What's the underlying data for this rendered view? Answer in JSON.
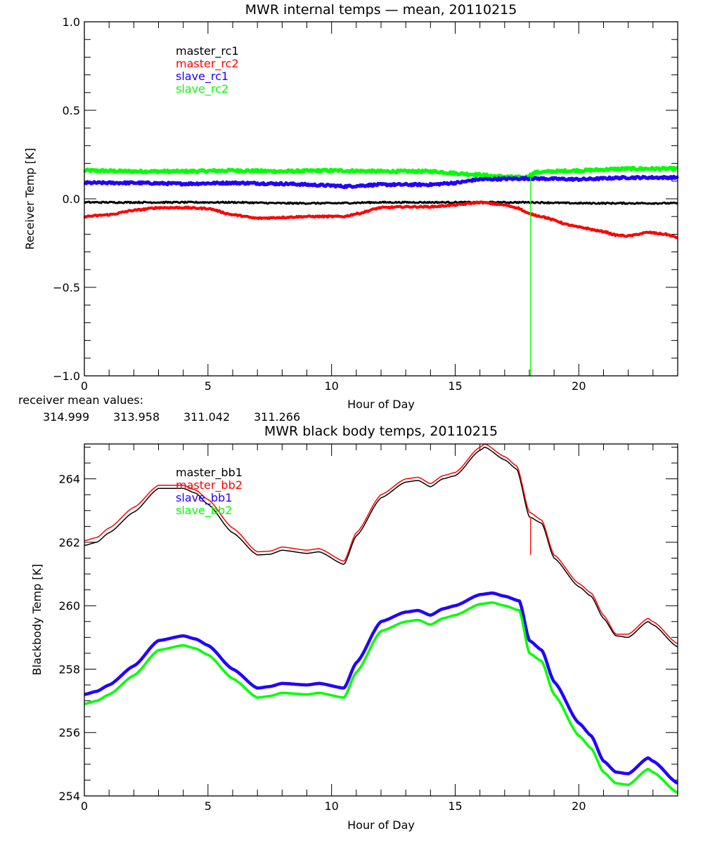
{
  "chart_data": [
    {
      "type": "line",
      "title": "MWR internal temps — mean, 20110215",
      "xlabel": "Hour of Day",
      "ylabel": "Receiver Temp [K]",
      "xlim": [
        0,
        24
      ],
      "ylim": [
        -1.0,
        1.0
      ],
      "xticks": [
        "0",
        "5",
        "10",
        "15",
        "20"
      ],
      "yticks": [
        "-1.0",
        "-0.5",
        "0.0",
        "0.5",
        "1.0"
      ],
      "grid": false,
      "legend_position": "top-left",
      "series": [
        {
          "name": "master_rc1",
          "color": "#000000",
          "x": [
            0,
            2,
            4,
            6,
            8,
            10,
            12,
            14,
            16,
            18,
            20,
            22,
            24
          ],
          "y": [
            -0.02,
            -0.02,
            -0.02,
            -0.02,
            -0.025,
            -0.025,
            -0.02,
            -0.02,
            -0.02,
            -0.02,
            -0.025,
            -0.025,
            -0.025
          ]
        },
        {
          "name": "master_rc2",
          "color": "#ff0000",
          "x": [
            0,
            1,
            2,
            3,
            4,
            5,
            6,
            7,
            8,
            9,
            10,
            10.5,
            11,
            12,
            13,
            14,
            15,
            16,
            17,
            17.5,
            18,
            18.5,
            19,
            19.5,
            20,
            21,
            21.5,
            22,
            22.8,
            23.5,
            24
          ],
          "y": [
            -0.1,
            -0.09,
            -0.065,
            -0.05,
            -0.05,
            -0.055,
            -0.09,
            -0.11,
            -0.105,
            -0.1,
            -0.1,
            -0.1,
            -0.085,
            -0.05,
            -0.045,
            -0.045,
            -0.035,
            -0.02,
            -0.035,
            -0.05,
            -0.085,
            -0.1,
            -0.12,
            -0.145,
            -0.16,
            -0.185,
            -0.205,
            -0.21,
            -0.19,
            -0.2,
            -0.22
          ]
        },
        {
          "name": "slave_rc1",
          "color": "#2200ff",
          "x": [
            0,
            2,
            4,
            6,
            8,
            10,
            10.5,
            12,
            14,
            15,
            16,
            18,
            20,
            22,
            24
          ],
          "y": [
            0.09,
            0.09,
            0.085,
            0.09,
            0.085,
            0.075,
            0.07,
            0.08,
            0.08,
            0.09,
            0.11,
            0.115,
            0.11,
            0.12,
            0.12
          ]
        },
        {
          "name": "slave_rc2",
          "color": "#00ff00",
          "x": [
            0,
            2,
            4,
            6,
            8,
            10,
            12,
            14,
            15.5,
            17,
            17.8,
            18.3,
            19,
            20,
            22,
            24
          ],
          "y": [
            0.16,
            0.155,
            0.155,
            0.16,
            0.155,
            0.16,
            0.155,
            0.155,
            0.14,
            0.125,
            0.12,
            0.15,
            0.155,
            0.16,
            0.17,
            0.17
          ]
        }
      ],
      "annotations": {
        "spike": {
          "series": "slave_rc2",
          "x": 18.05,
          "y_from": 0.14,
          "y_to": -1.0
        }
      }
    },
    {
      "type": "line",
      "title": "MWR black body temps, 20110215",
      "xlabel": "Hour of Day",
      "ylabel": "Blackbody Temp [K]",
      "xlim": [
        0,
        24
      ],
      "ylim": [
        254,
        265.1
      ],
      "xticks": [
        "0",
        "5",
        "10",
        "15",
        "20"
      ],
      "yticks": [
        "254",
        "256",
        "258",
        "260",
        "262",
        "264"
      ],
      "grid": false,
      "legend_position": "top-left",
      "series": [
        {
          "name": "master_bb1",
          "color": "#000000",
          "x": [
            0,
            0.5,
            1,
            2,
            3,
            4,
            4.5,
            5,
            6,
            7,
            7.5,
            8,
            9,
            9.5,
            10.5,
            11,
            12,
            13,
            13.5,
            14,
            14.5,
            15,
            16,
            16.2,
            17,
            17.5,
            18,
            18.5,
            19,
            20,
            20.5,
            21,
            21.5,
            22,
            22.8,
            23,
            24
          ],
          "y": [
            261.9,
            262.0,
            262.3,
            262.95,
            263.7,
            263.7,
            263.55,
            263.2,
            262.3,
            261.6,
            261.62,
            261.75,
            261.65,
            261.7,
            261.3,
            262.2,
            263.4,
            263.9,
            263.95,
            263.75,
            264.0,
            264.1,
            264.9,
            265.0,
            264.6,
            264.3,
            262.8,
            262.6,
            261.5,
            260.6,
            260.3,
            259.6,
            259.05,
            259.0,
            259.5,
            259.4,
            258.7
          ]
        },
        {
          "name": "master_bb2",
          "color": "#ff0000",
          "x": [
            0,
            0.5,
            1,
            2,
            3,
            4,
            4.5,
            5,
            6,
            7,
            7.5,
            8,
            9,
            9.5,
            10.5,
            11,
            12,
            13,
            13.5,
            14,
            14.5,
            15,
            16,
            16.2,
            17,
            17.5,
            18,
            18.5,
            19,
            20,
            20.5,
            21,
            21.5,
            22,
            22.8,
            23,
            24
          ],
          "y": [
            262.05,
            262.15,
            262.45,
            263.1,
            263.8,
            263.8,
            263.65,
            263.35,
            262.45,
            261.7,
            261.72,
            261.85,
            261.75,
            261.8,
            261.4,
            262.3,
            263.5,
            264.0,
            264.05,
            263.85,
            264.1,
            264.2,
            265.0,
            265.1,
            264.7,
            264.4,
            262.95,
            262.7,
            261.6,
            260.7,
            260.4,
            259.7,
            259.1,
            259.1,
            259.6,
            259.5,
            258.8
          ]
        },
        {
          "name": "slave_bb1",
          "color": "#2200ff",
          "x": [
            0,
            0.5,
            1,
            2,
            3,
            4,
            4.5,
            5,
            6,
            7,
            7.5,
            8,
            9,
            9.5,
            10.5,
            11,
            12,
            13,
            13.5,
            14,
            14.5,
            15,
            16,
            16.5,
            17,
            17.6,
            18,
            18.5,
            19,
            20,
            20.5,
            21,
            21.5,
            22,
            22.8,
            23,
            24
          ],
          "y": [
            257.2,
            257.3,
            257.5,
            258.1,
            258.9,
            259.05,
            258.95,
            258.75,
            258.0,
            257.4,
            257.45,
            257.55,
            257.5,
            257.55,
            257.4,
            258.2,
            259.5,
            259.8,
            259.85,
            259.7,
            259.9,
            260.0,
            260.35,
            260.4,
            260.3,
            260.15,
            258.9,
            258.6,
            257.6,
            256.3,
            255.9,
            255.1,
            254.75,
            254.7,
            255.2,
            255.1,
            254.4
          ]
        },
        {
          "name": "slave_bb2",
          "color": "#00ff00",
          "x": [
            0,
            0.5,
            1,
            2,
            3,
            4,
            4.5,
            5,
            6,
            7,
            7.5,
            8,
            9,
            9.5,
            10.5,
            11,
            12,
            13,
            13.5,
            14,
            14.5,
            15,
            16,
            16.5,
            17,
            17.6,
            18,
            18.5,
            19,
            20,
            20.5,
            21,
            21.5,
            22,
            22.8,
            23,
            24
          ],
          "y": [
            256.9,
            257.0,
            257.2,
            257.8,
            258.6,
            258.75,
            258.65,
            258.45,
            257.7,
            257.1,
            257.15,
            257.25,
            257.2,
            257.25,
            257.1,
            257.9,
            259.2,
            259.5,
            259.55,
            259.4,
            259.6,
            259.7,
            260.05,
            260.1,
            260.0,
            259.85,
            258.5,
            258.25,
            257.2,
            255.9,
            255.5,
            254.75,
            254.4,
            254.35,
            254.85,
            254.75,
            254.1
          ]
        }
      ],
      "annotations": {
        "spike": {
          "series": "master_bb2",
          "x": 18.05,
          "y_from": 262.8,
          "y_to": 261.6
        }
      }
    }
  ],
  "receiver_mean": {
    "label": "receiver mean values:",
    "values": [
      {
        "text": "314.999",
        "color": "#000000"
      },
      {
        "text": "313.958",
        "color": "#ff0000"
      },
      {
        "text": "311.042",
        "color": "#2200ff"
      },
      {
        "text": "311.266",
        "color": "#00ff00"
      }
    ]
  }
}
